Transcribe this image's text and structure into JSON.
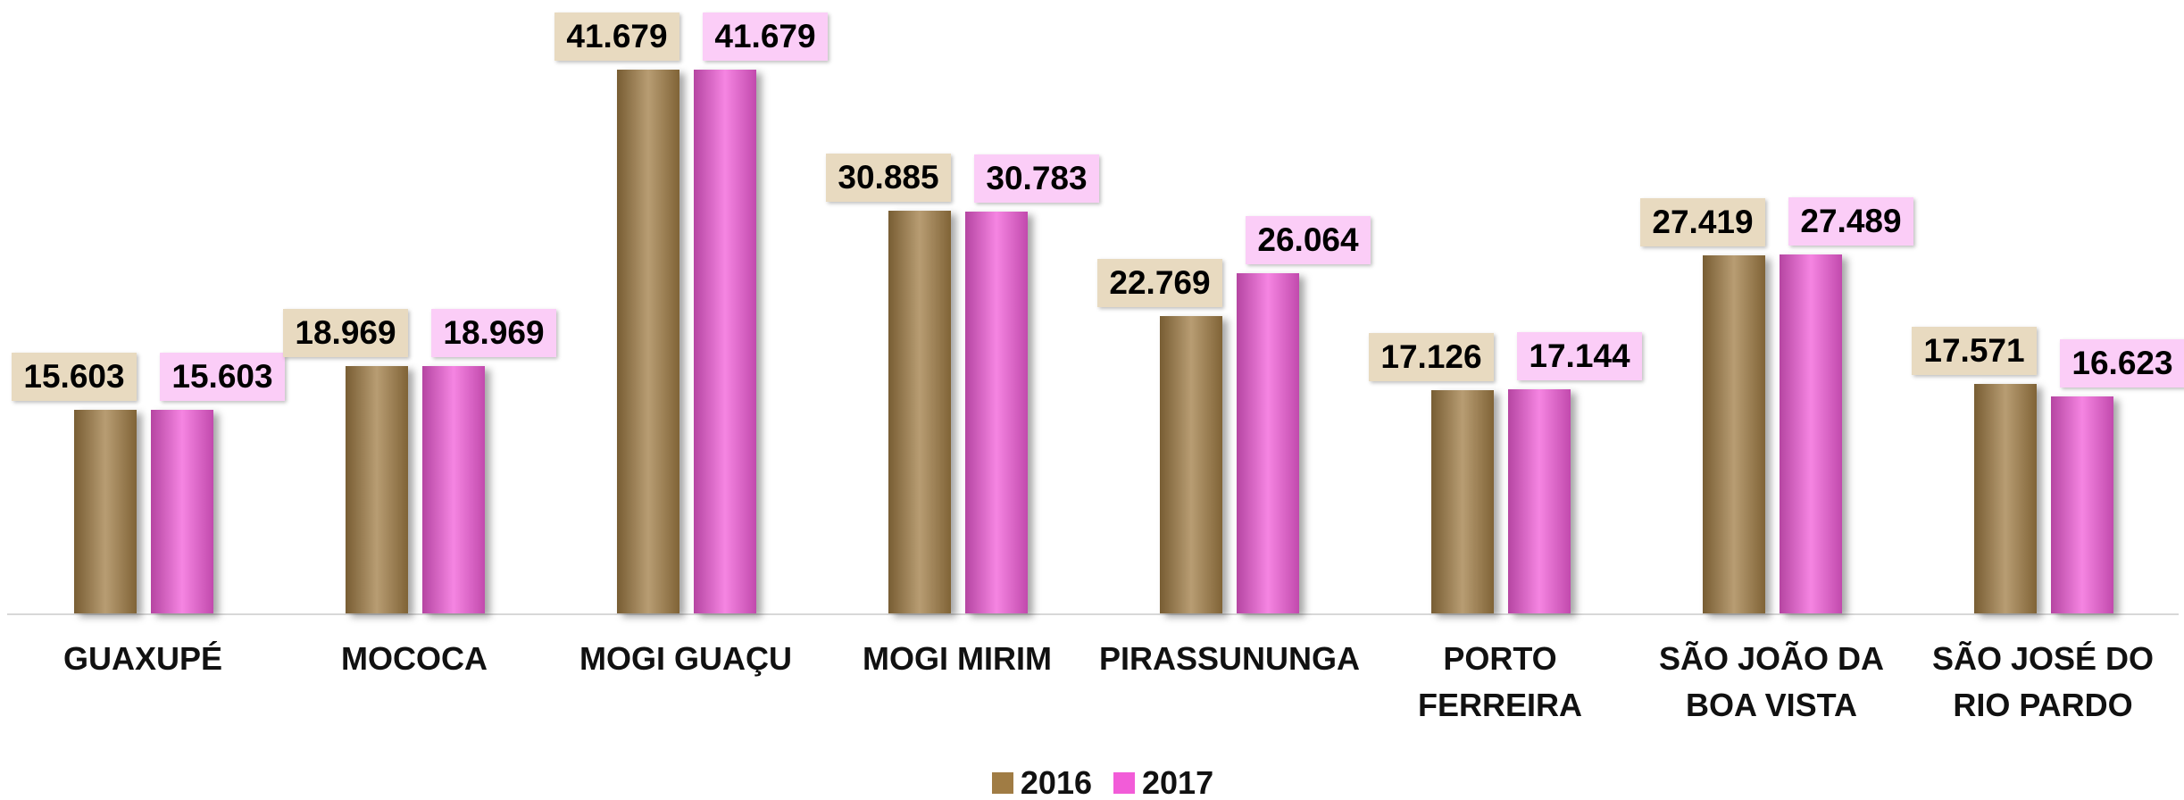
{
  "chart_data": {
    "type": "bar",
    "categories": [
      "GUAXUPÉ",
      "MOCOCA",
      "MOGI GUAÇU",
      "MOGI MIRIM",
      "PIRASSUNUNGA",
      "PORTO FERREIRA",
      "SÃO JOÃO DA BOA VISTA",
      "SÃO JOSÉ DO RIO PARDO"
    ],
    "series": [
      {
        "name": "2016",
        "color": "#a07c44",
        "label_color": "#e8dac0",
        "values": [
          15.603,
          18.969,
          41.679,
          30.885,
          22.769,
          17.126,
          27.419,
          17.571
        ]
      },
      {
        "name": "2017",
        "color": "#f25cd8",
        "label_color": "#fbcdf7",
        "values": [
          15.603,
          18.969,
          41.679,
          30.783,
          26.064,
          17.144,
          27.489,
          16.623
        ]
      }
    ]
  }
}
